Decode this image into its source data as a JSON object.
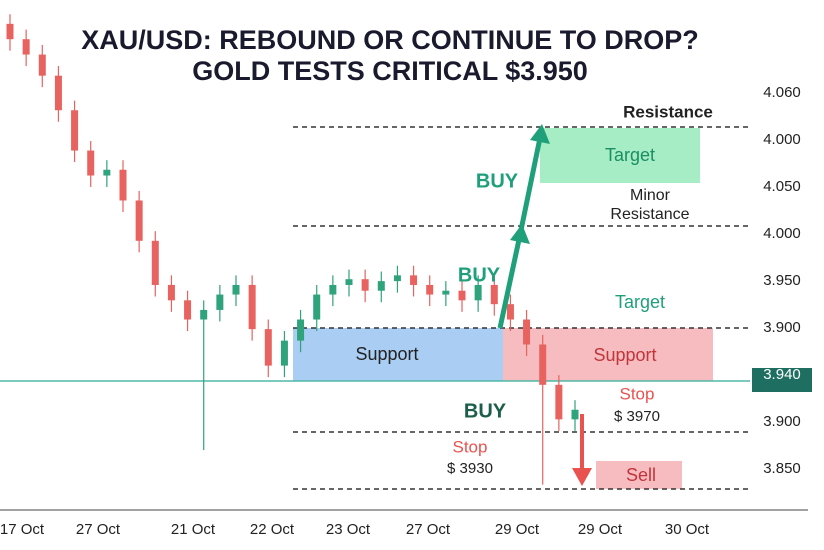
{
  "chart_data": {
    "type": "candlestick",
    "title": [
      "XAU/USD: REBOUND OR CONTINUE TO DROP?",
      "GOLD TESTS CRITICAL $3.950"
    ],
    "ylim": [
      3.83,
      4.08
    ],
    "up_color": "#2fa37c",
    "down_color": "#e8625f",
    "open": [
      4.078,
      4.07,
      4.062,
      4.051,
      4.033,
      4.012,
      3.999,
      4.002,
      3.986,
      3.965,
      3.942,
      3.934,
      3.924,
      3.929,
      3.937,
      3.942,
      3.919,
      3.9,
      3.913,
      3.924,
      3.937,
      3.942,
      3.945,
      3.939,
      3.944,
      3.947,
      3.942,
      3.937,
      3.939,
      3.934,
      3.942,
      3.932,
      3.924,
      3.911,
      3.89,
      3.872
    ],
    "high": [
      4.083,
      4.075,
      4.067,
      4.056,
      4.038,
      4.017,
      4.007,
      4.007,
      3.991,
      3.97,
      3.947,
      3.939,
      3.934,
      3.942,
      3.947,
      3.947,
      3.924,
      3.918,
      3.929,
      3.942,
      3.947,
      3.95,
      3.95,
      3.949,
      3.952,
      3.952,
      3.947,
      3.944,
      3.944,
      3.947,
      3.947,
      3.937,
      3.929,
      3.916,
      3.895,
      3.882
    ],
    "low": [
      4.064,
      4.056,
      4.045,
      4.027,
      4.006,
      3.993,
      3.993,
      3.98,
      3.959,
      3.936,
      3.928,
      3.918,
      3.856,
      3.923,
      3.931,
      3.913,
      3.894,
      3.894,
      3.907,
      3.918,
      3.931,
      3.936,
      3.933,
      3.933,
      3.938,
      3.936,
      3.931,
      3.931,
      3.928,
      3.928,
      3.926,
      3.918,
      3.905,
      3.838,
      3.866,
      3.866
    ],
    "close": [
      4.07,
      4.062,
      4.051,
      4.033,
      4.012,
      3.999,
      4.002,
      3.986,
      3.965,
      3.942,
      3.934,
      3.924,
      3.929,
      3.937,
      3.942,
      3.919,
      3.9,
      3.913,
      3.924,
      3.937,
      3.942,
      3.945,
      3.939,
      3.944,
      3.947,
      3.942,
      3.937,
      3.939,
      3.934,
      3.942,
      3.932,
      3.924,
      3.911,
      3.89,
      3.872,
      3.877
    ],
    "y_axis_labels": [
      "4.060",
      "4.000",
      "4.050",
      "4.000",
      "3.950",
      "3.900",
      "3.940",
      "3.900",
      "3.850"
    ],
    "x_axis_labels": [
      "17 Oct",
      "27 Oct",
      "21 Oct",
      "22 Oct",
      "23 Oct",
      "27 Oct",
      "29 Oct",
      "29 Oct",
      "30 Oct"
    ],
    "annotations": [
      "Resistance",
      "Target",
      "BUY",
      "Minor",
      "Resistance",
      "BUY",
      "Target",
      "Support",
      "Support",
      "BUY",
      "Stop",
      "$ 3970",
      "Stop",
      "$ 3930",
      "Sell"
    ]
  }
}
